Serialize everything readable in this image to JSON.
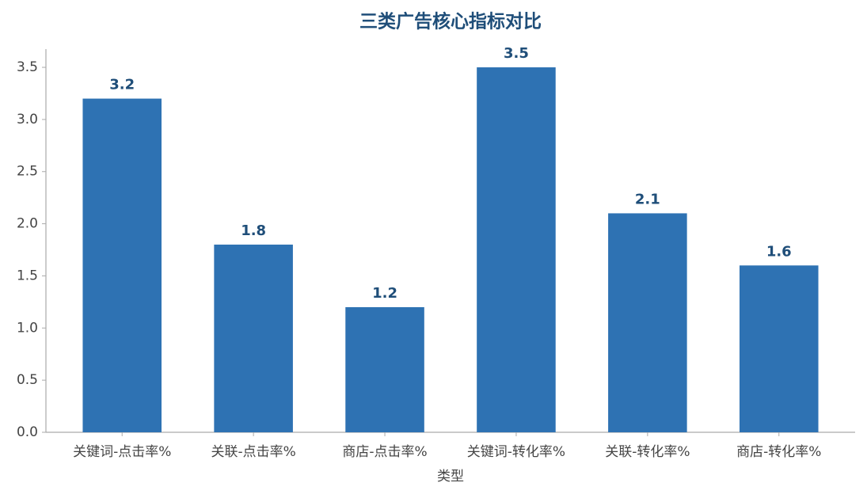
{
  "chart_data": {
    "type": "bar",
    "title": "三类广告核心指标对比",
    "x_label": "类型",
    "categories": [
      "关键词-点击率%",
      "关联-点击率%",
      "商店-点击率%",
      "关键词-转化率%",
      "关联-转化率%",
      "商店-转化率%"
    ],
    "values": [
      3.2,
      1.8,
      1.2,
      3.5,
      2.1,
      1.6
    ],
    "color": "#2e72b3",
    "ylim": [
      0,
      3.675
    ],
    "yticks": [
      {
        "value": 0,
        "label": "0.0"
      },
      0.5,
      {
        "value": 1,
        "label": "1.0"
      },
      1.5,
      {
        "value": 2,
        "label": "2.0"
      },
      2.5,
      {
        "value": 3,
        "label": "3.0"
      },
      3.5
    ],
    "grid": false
  }
}
